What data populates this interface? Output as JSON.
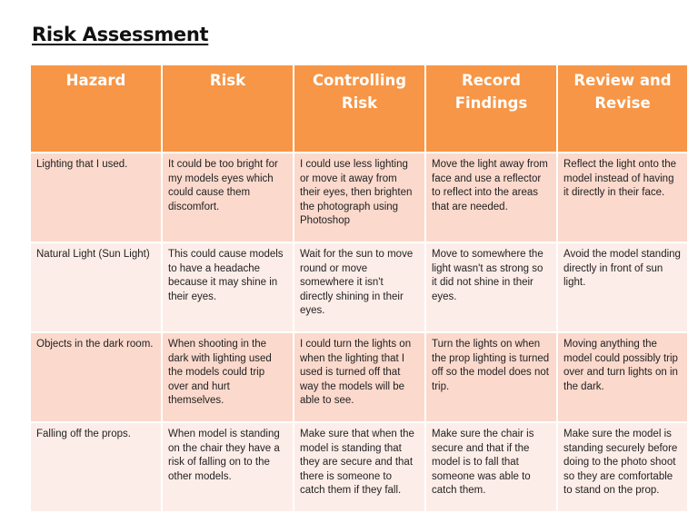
{
  "document": {
    "title": "Risk Assessment"
  },
  "table": {
    "headers": [
      "Hazard",
      "Risk",
      "Controlling Risk",
      "Record Findings",
      "Review and Revise"
    ],
    "rows": [
      {
        "hazard": "Lighting that I used.",
        "risk": "It could be too bright for my models eyes which could cause them discomfort.",
        "controlling_risk": "I could use less lighting or move it away from their eyes, then brighten the photograph using Photoshop",
        "record_findings": "Move the light away from face and use a reflector to reflect into the areas that are needed.",
        "review_and_revise": "Reflect the light onto the model instead of having it directly in their face."
      },
      {
        "hazard": "Natural Light (Sun Light)",
        "risk": "This could cause models to have a headache because it may shine in their eyes.",
        "controlling_risk": "Wait for the sun to move round or move somewhere it isn't directly shining in their eyes.",
        "record_findings": "Move to somewhere the light wasn't as strong so it did not shine in their eyes.",
        "review_and_revise": "Avoid the model standing directly in front of sun light."
      },
      {
        "hazard": "Objects in the dark room.",
        "risk": "When shooting in the dark with lighting used the models could trip over and hurt themselves.",
        "controlling_risk": "I could turn the lights on when the lighting that I used is turned off that way the models will be able to see.",
        "record_findings": "Turn the lights on when the prop lighting is turned off so the model does not trip.",
        "review_and_revise": "Moving anything the model could possibly trip over and turn lights on in the dark."
      },
      {
        "hazard": "Falling off the props.",
        "risk": "When model is standing on the chair they have a risk of falling on to the other models.",
        "controlling_risk": "Make sure that when the model is standing that they are secure and that there is someone to catch them if they fall.",
        "record_findings": "Make sure the chair is secure and that if the model is to fall that someone was able to catch them.",
        "review_and_revise": "Make sure the model is standing securely before doing to the photo shoot so they are comfortable to stand on the prop."
      }
    ]
  },
  "colors": {
    "header_bg": "#f79646",
    "row_dark_bg": "#fbd9cc",
    "row_light_bg": "#fdede8",
    "header_text": "#ffffff"
  }
}
